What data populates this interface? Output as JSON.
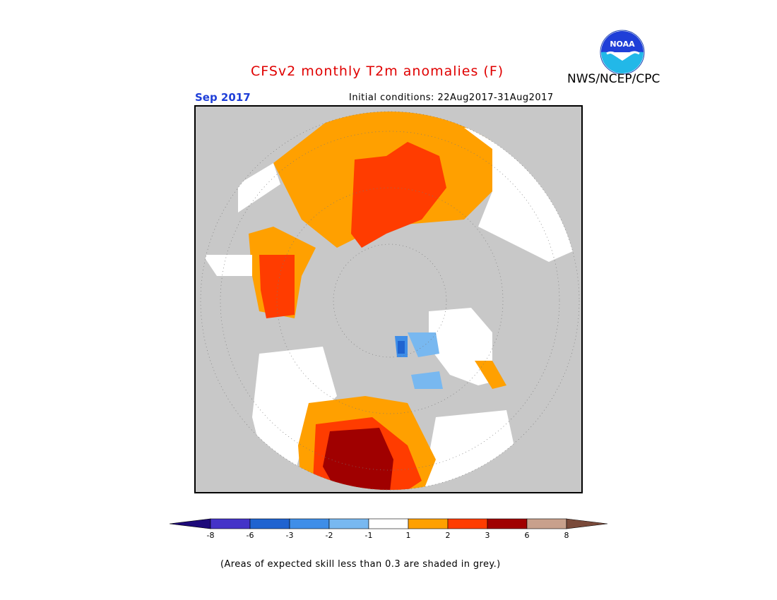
{
  "header": {
    "title": "CFSv2 monthly T2m anomalies (F)",
    "agency": "NWS/NCEP/CPC",
    "logo_text": "NOAA",
    "month": "Sep 2017",
    "initial_conditions": "Initial conditions: 22Aug2017-31Aug2017"
  },
  "legend": {
    "tick_labels": [
      "-8",
      "-6",
      "-3",
      "-2",
      "-1",
      "1",
      "2",
      "3",
      "6",
      "8"
    ],
    "colors": {
      "lt_-8": "#1d0a7a",
      "-8_-6": "#4433c8",
      "-6_-3": "#1f63d0",
      "-3_-2": "#3f8ee8",
      "-2_-1": "#78b8f0",
      "-1_1": "#ffffff",
      "1_2": "#ffa000",
      "2_3": "#ff3c00",
      "3_6": "#a00000",
      "6_8": "#c8a08c",
      "gt_8": "#7a4a3a"
    }
  },
  "footnote": "(Areas of expected skill less than 0.3 are shaded in grey.)"
}
